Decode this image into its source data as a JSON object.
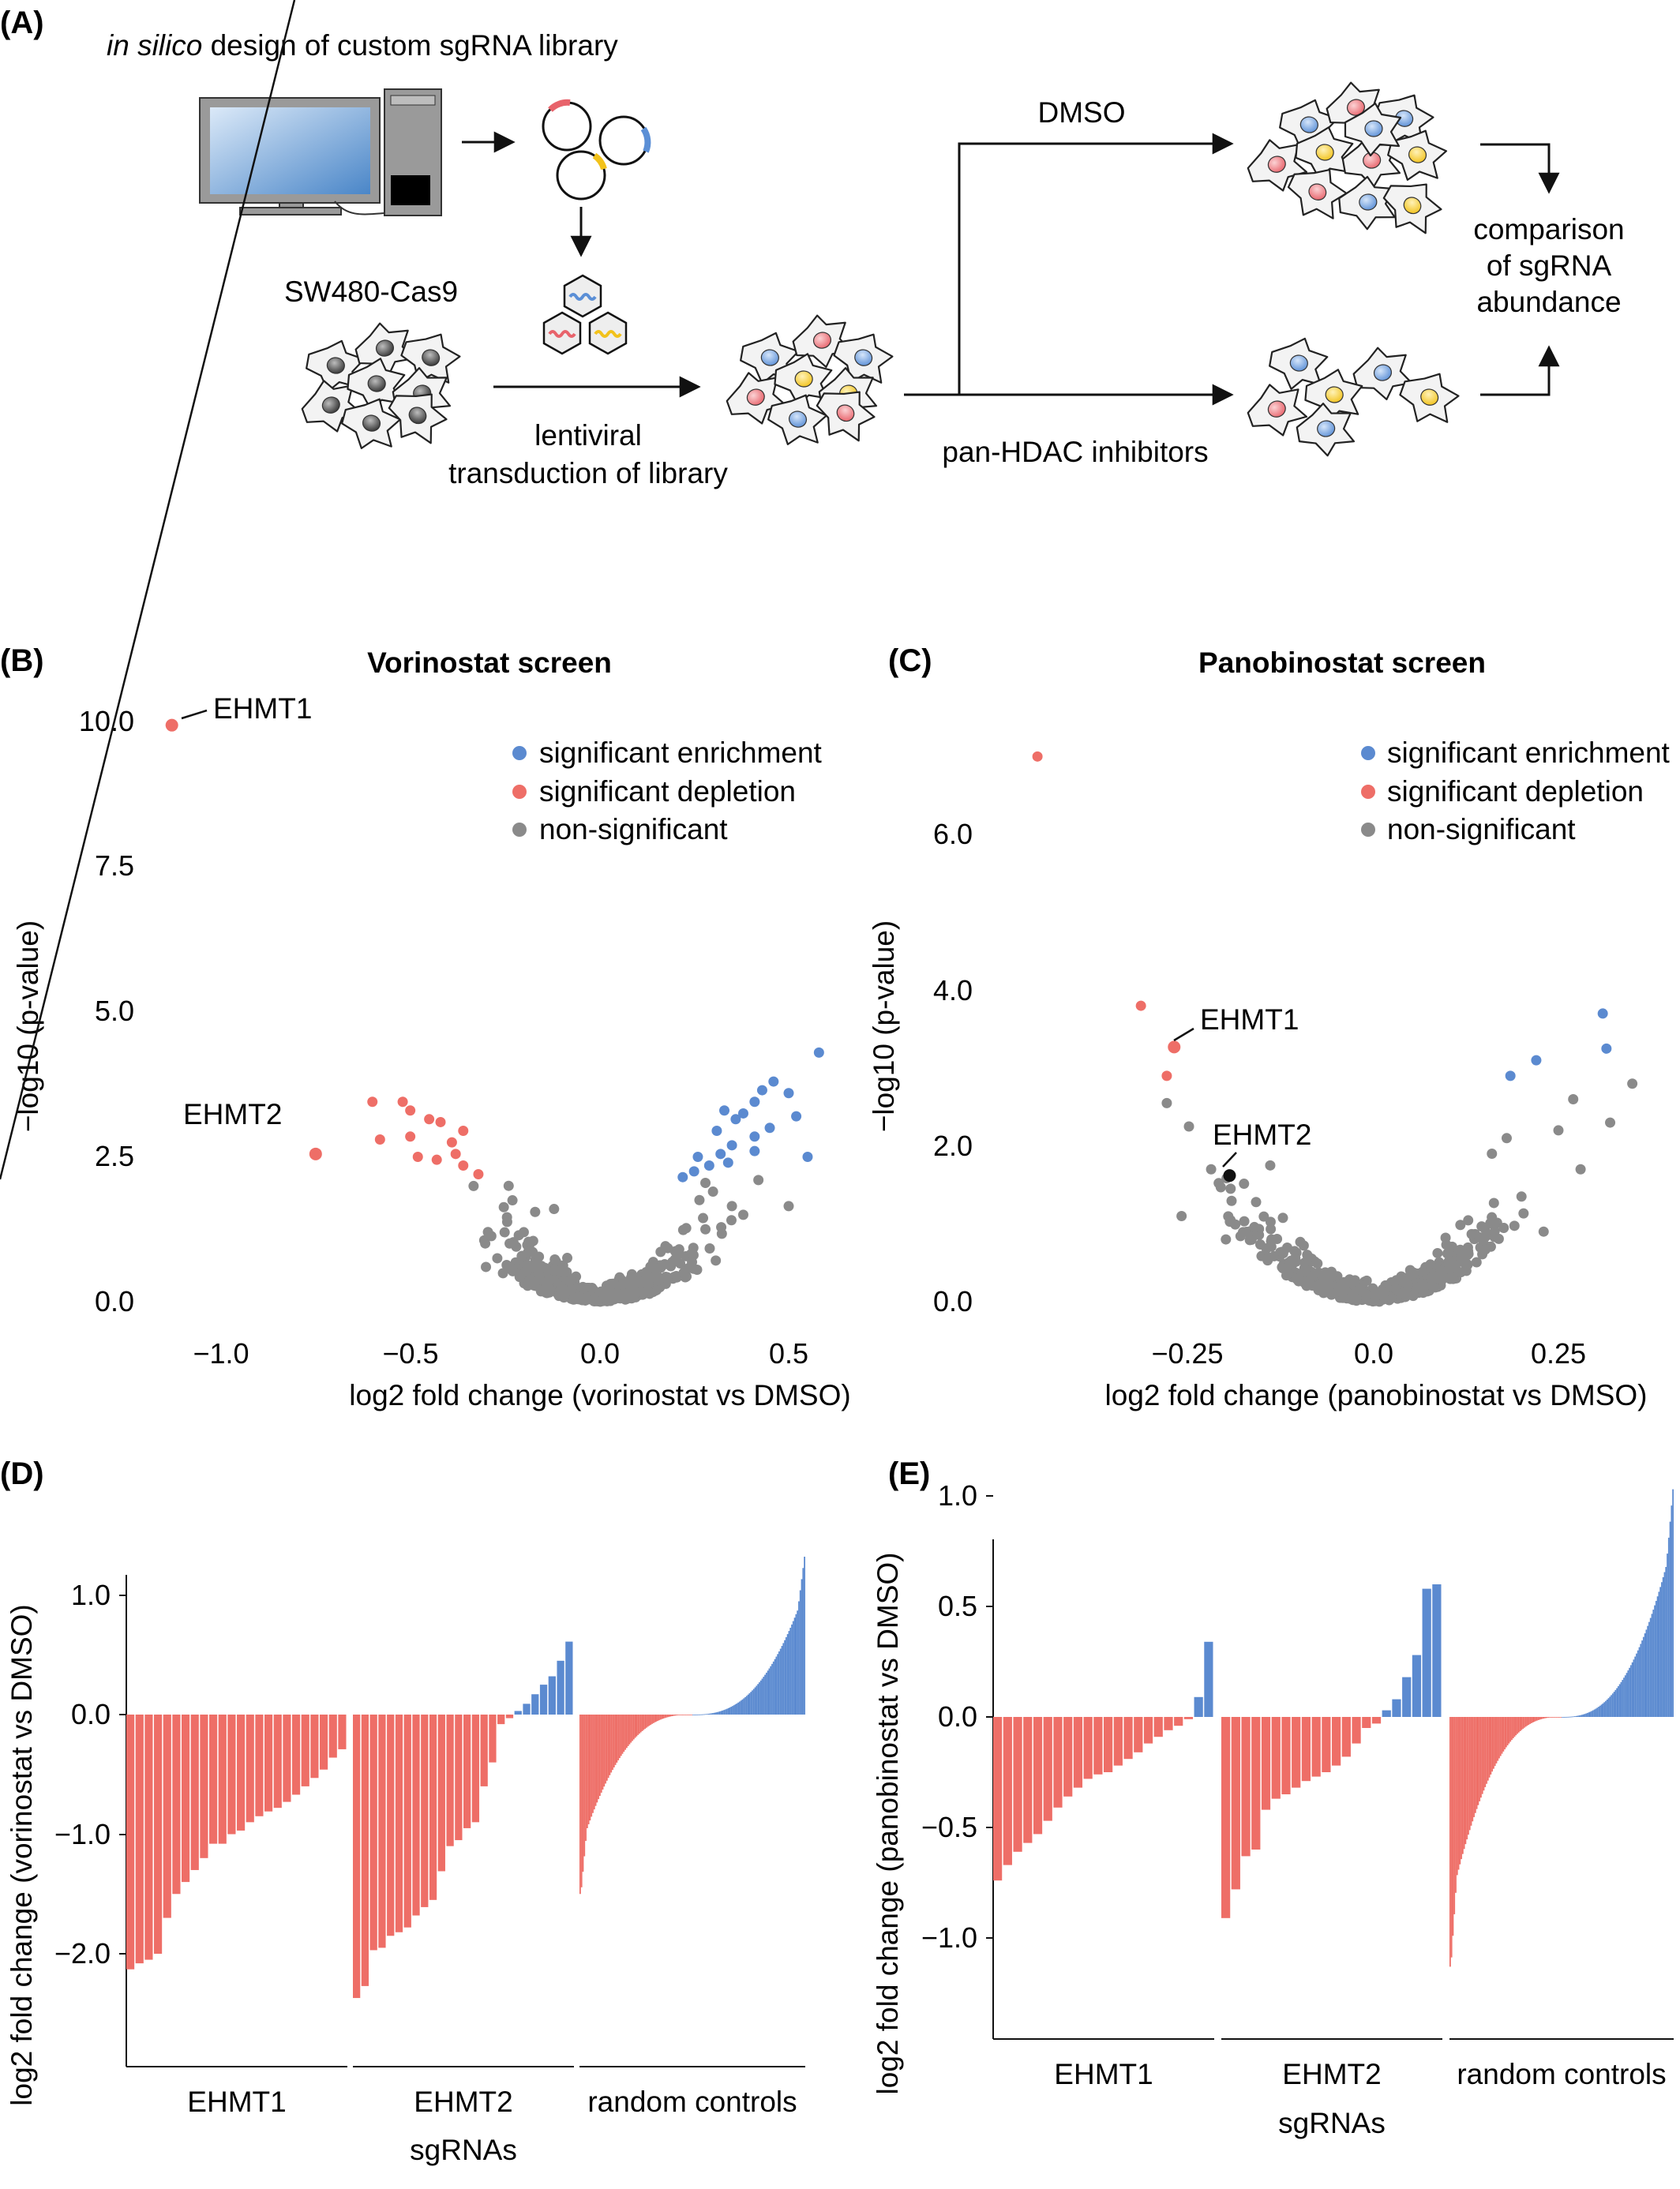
{
  "panels": {
    "A": "(A)",
    "B": "(B)",
    "C": "(C)",
    "D": "(D)",
    "E": "(E)"
  },
  "schematic": {
    "design_italic": "in silico",
    "design_rest": " design of custom sgRNA library",
    "cell_line": "SW480-Cas9",
    "transduction_line1": "lentiviral",
    "transduction_line2": "transduction of library",
    "dmso": "DMSO",
    "inhibitors": "pan-HDAC inhibitors",
    "comparison_line1": "comparison",
    "comparison_line2": "of sgRNA",
    "comparison_line3": "abundance",
    "colors": {
      "red": "#e8636b",
      "blue": "#5b8fd6",
      "yellow": "#f2c21b",
      "dark": "#555555"
    }
  },
  "legend": {
    "enrichment": "significant enrichment",
    "depletion": "significant depletion",
    "nonsig": "non-significant"
  },
  "colors": {
    "enrich": "#5b8ad0",
    "deplete": "#ee6e67",
    "nonsig": "#8a8a8a",
    "highlight": "#111111"
  },
  "volcanoB": {
    "title": "Vorinostat screen",
    "xlabel": "log2 fold change (vorinostat vs DMSO)",
    "ylabel": "−log10 (p-value)",
    "xticks": [
      "−1.0",
      "−0.5",
      "0.0",
      "0.5"
    ],
    "yticks": [
      "0.0",
      "2.5",
      "5.0",
      "7.5",
      "10.0"
    ],
    "label1": "EHMT1",
    "label2": "EHMT2"
  },
  "volcanoC": {
    "title": "Panobinostat screen",
    "xlabel": "log2 fold change (panobinostat vs DMSO)",
    "ylabel": "−log10 (p-value)",
    "xticks": [
      "−0.25",
      "0.0",
      "0.25"
    ],
    "yticks": [
      "0.0",
      "2.0",
      "4.0",
      "6.0"
    ],
    "label1": "EHMT1",
    "label2": "EHMT2"
  },
  "barD": {
    "ylabel": "log2 fold change (vorinostat vs DMSO)",
    "yticks": [
      "−2.0",
      "−1.0",
      "0.0",
      "1.0"
    ],
    "groups": [
      "EHMT1",
      "EHMT2",
      "random controls"
    ],
    "xlabel": "sgRNAs"
  },
  "barE": {
    "ylabel": "log2 fold change (panobinostat vs DMSO)",
    "yticks": [
      "−1.0",
      "−0.5",
      "0.0",
      "0.5",
      "1.0"
    ],
    "groups": [
      "EHMT1",
      "EHMT2",
      "random controls"
    ],
    "xlabel": "sgRNAs"
  },
  "chart_data": [
    {
      "type": "scatter",
      "title": "Vorinostat screen",
      "xlabel": "log2 fold change (vorinostat vs DMSO)",
      "ylabel": "−log10 (p-value)",
      "xlim": [
        -1.25,
        0.62
      ],
      "ylim": [
        -0.2,
        10.3
      ],
      "legend_position": "top-right",
      "series": [
        {
          "name": "significant depletion",
          "points": [
            [
              -1.13,
              9.95
            ],
            [
              -0.75,
              2.55
            ],
            [
              -0.6,
              3.45
            ],
            [
              -0.58,
              2.8
            ],
            [
              -0.52,
              3.45
            ],
            [
              -0.5,
              3.3
            ],
            [
              -0.5,
              2.85
            ],
            [
              -0.48,
              2.5
            ],
            [
              -0.45,
              3.15
            ],
            [
              -0.43,
              2.45
            ],
            [
              -0.42,
              3.1
            ],
            [
              -0.39,
              2.75
            ],
            [
              -0.38,
              2.55
            ],
            [
              -0.36,
              2.95
            ],
            [
              -0.36,
              2.35
            ],
            [
              -0.32,
              2.2
            ]
          ]
        },
        {
          "name": "significant enrichment",
          "points": [
            [
              0.58,
              4.3
            ],
            [
              0.46,
              3.8
            ],
            [
              0.43,
              3.65
            ],
            [
              0.5,
              3.6
            ],
            [
              0.41,
              3.45
            ],
            [
              0.38,
              3.25
            ],
            [
              0.33,
              3.3
            ],
            [
              0.52,
              3.2
            ],
            [
              0.45,
              3.0
            ],
            [
              0.36,
              3.15
            ],
            [
              0.31,
              2.95
            ],
            [
              0.35,
              2.7
            ],
            [
              0.26,
              2.5
            ],
            [
              0.29,
              2.35
            ],
            [
              0.32,
              2.55
            ],
            [
              0.41,
              2.6
            ],
            [
              0.22,
              2.15
            ],
            [
              0.25,
              2.25
            ],
            [
              0.34,
              2.4
            ],
            [
              0.41,
              2.85
            ],
            [
              0.55,
              2.5
            ]
          ]
        },
        {
          "name": "non-significant",
          "points": []
        }
      ],
      "annotations": [
        "EHMT1",
        "EHMT2"
      ]
    },
    {
      "type": "scatter",
      "title": "Panobinostat screen",
      "xlabel": "log2 fold change (panobinostat vs DMSO)",
      "ylabel": "−log10 (p-value)",
      "xlim": [
        -0.5,
        0.38
      ],
      "ylim": [
        -0.1,
        7.3
      ],
      "legend_position": "top-right",
      "series": [
        {
          "name": "significant depletion",
          "points": [
            [
              -0.455,
              7.0
            ],
            [
              -0.315,
              3.8
            ],
            [
              -0.27,
              3.27
            ],
            [
              -0.28,
              2.9
            ]
          ]
        },
        {
          "name": "significant enrichment",
          "points": [
            [
              0.31,
              3.7
            ],
            [
              0.315,
              3.25
            ],
            [
              0.22,
              3.1
            ],
            [
              0.185,
              2.9
            ]
          ]
        },
        {
          "name": "highlight",
          "points": [
            [
              -0.195,
              1.62
            ]
          ]
        },
        {
          "name": "non-significant",
          "points": []
        }
      ],
      "annotations": [
        "EHMT1",
        "EHMT2"
      ]
    },
    {
      "type": "bar",
      "ylabel": "log2 fold change (vorinostat vs DMSO)",
      "xlabel": "sgRNAs",
      "ylim": [
        -2.6,
        1.45
      ],
      "groups": [
        {
          "name": "EHMT1",
          "values": [
            -2.13,
            -2.08,
            -2.05,
            -2.0,
            -1.7,
            -1.5,
            -1.4,
            -1.3,
            -1.2,
            -1.08,
            -1.08,
            -1.0,
            -0.97,
            -0.9,
            -0.85,
            -0.81,
            -0.78,
            -0.73,
            -0.67,
            -0.6,
            -0.53,
            -0.46,
            -0.36,
            -0.29
          ]
        },
        {
          "name": "EHMT2",
          "values": [
            -2.37,
            -2.27,
            -1.97,
            -1.95,
            -1.85,
            -1.82,
            -1.78,
            -1.68,
            -1.61,
            -1.55,
            -1.31,
            -1.1,
            -1.05,
            -0.95,
            -0.9,
            -0.6,
            -0.4,
            -0.08,
            -0.03,
            0.03,
            0.09,
            0.17,
            0.25,
            0.32,
            0.45,
            0.61
          ]
        },
        {
          "name": "random controls",
          "n": 160,
          "min": -1.5,
          "max": 1.32
        }
      ]
    },
    {
      "type": "bar",
      "ylabel": "log2 fold change (panobinostat vs DMSO)",
      "xlabel": "sgRNAs",
      "ylim": [
        -1.22,
        1.1
      ],
      "groups": [
        {
          "name": "EHMT1",
          "values": [
            -0.74,
            -0.67,
            -0.61,
            -0.57,
            -0.53,
            -0.47,
            -0.41,
            -0.36,
            -0.32,
            -0.28,
            -0.26,
            -0.25,
            -0.22,
            -0.19,
            -0.16,
            -0.12,
            -0.09,
            -0.06,
            -0.04,
            -0.01,
            0.09,
            0.34
          ]
        },
        {
          "name": "EHMT2",
          "values": [
            -0.91,
            -0.78,
            -0.63,
            -0.6,
            -0.42,
            -0.37,
            -0.35,
            -0.32,
            -0.29,
            -0.27,
            -0.25,
            -0.22,
            -0.18,
            -0.12,
            -0.05,
            -0.03,
            0.03,
            0.08,
            0.18,
            0.28,
            0.58,
            0.6
          ]
        },
        {
          "name": "random controls",
          "n": 160,
          "min": -1.13,
          "max": 1.03
        }
      ]
    }
  ]
}
